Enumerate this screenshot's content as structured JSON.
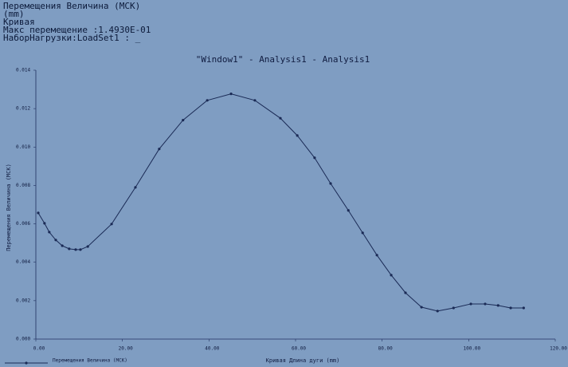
{
  "chart_data": {
    "type": "line",
    "header": [
      "Перемещения Величина (МСК)",
      "(mm)",
      "Кривая",
      "Макс перемещение  :1.4930E-01",
      "НаборНагрузки:LoadSet1 : _"
    ],
    "title": "\"Window1\" - Analysis1 - Analysis1",
    "x_label": "Кривая Длина дуги (mm)",
    "y_label": "Перемещения Величина (МСК)",
    "x": [
      0.55,
      2.0,
      3.1,
      4.6,
      6.1,
      7.7,
      9.2,
      10.3,
      12.0,
      17.5,
      23.0,
      28.5,
      34.0,
      39.6,
      45.1,
      50.6,
      56.5,
      60.4,
      64.4,
      68.1,
      72.2,
      75.5,
      78.8,
      82.1,
      85.4,
      89.1,
      92.8,
      96.5,
      100.5,
      103.8,
      106.8,
      109.7,
      112.7
    ],
    "series": [
      {
        "name": "Перемещения Величина (МСК)",
        "color": "#1a2a55",
        "values": [
          0.00657,
          0.00603,
          0.00557,
          0.00516,
          0.00486,
          0.0047,
          0.00466,
          0.00466,
          0.00482,
          0.00599,
          0.0079,
          0.0099,
          0.0114,
          0.01243,
          0.01277,
          0.01243,
          0.0115,
          0.0106,
          0.00944,
          0.0081,
          0.0067,
          0.00553,
          0.00437,
          0.00333,
          0.00241,
          0.00166,
          0.00146,
          0.00162,
          0.00183,
          0.00183,
          0.00175,
          0.00162,
          0.00162
        ]
      }
    ],
    "xlim": [
      0,
      120
    ],
    "xticks": [
      {
        "value": 0,
        "label": "0.00"
      },
      {
        "value": 20,
        "label": "20.00"
      },
      {
        "value": 40,
        "label": "40.00"
      },
      {
        "value": 60,
        "label": "60.00"
      },
      {
        "value": 80,
        "label": "80.00"
      },
      {
        "value": 100,
        "label": "100.00"
      },
      {
        "value": 120,
        "label": "120.00"
      }
    ],
    "ylim": [
      0,
      0.014
    ],
    "yticks": [
      {
        "value": 0,
        "label": "0.000"
      },
      0.002,
      0.004,
      0.006,
      0.008,
      {
        "value": 0.01,
        "label": "0.010"
      },
      0.012,
      0.014
    ]
  }
}
